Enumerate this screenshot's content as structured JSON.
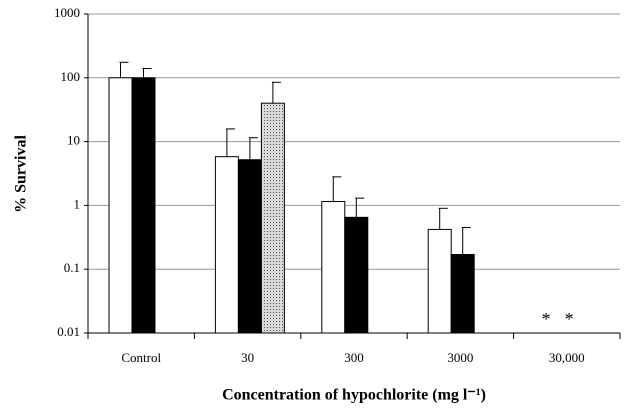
{
  "chart_data": {
    "type": "bar",
    "ylabel": "% Survival",
    "xlabel": "Concentration of hypochlorite (mg l⁻¹)",
    "categories": [
      "Control",
      "30",
      "300",
      "3000",
      "30,000"
    ],
    "series": [
      {
        "color": "#ffffff",
        "values": [
          100,
          5.8,
          1.15,
          0.42,
          null
        ],
        "errors": [
          75,
          10,
          1.65,
          0.48,
          null
        ]
      },
      {
        "color": "#000000",
        "values": [
          100,
          5.2,
          0.65,
          0.17,
          null
        ],
        "errors": [
          40,
          6.3,
          0.65,
          0.28,
          null
        ]
      },
      {
        "color": "#bdbdbd",
        "values": [
          null,
          40,
          null,
          null,
          null
        ],
        "errors": [
          null,
          45,
          null,
          null,
          null
        ]
      }
    ],
    "annotations": [
      "*",
      "*"
    ],
    "ylim": [
      0.01,
      1000
    ],
    "yticks": [
      0.01,
      0.1,
      1,
      10,
      100,
      1000
    ],
    "log_y": true,
    "grid": true
  }
}
